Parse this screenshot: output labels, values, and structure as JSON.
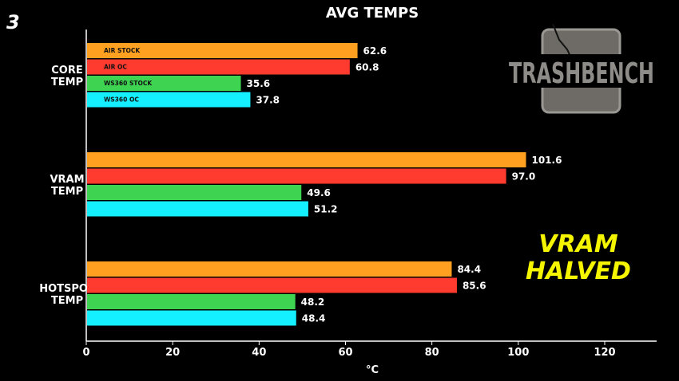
{
  "page_number": "3",
  "annotation": {
    "line1": "VRAM",
    "line2": "HALVED",
    "color": "#f5f500"
  },
  "logo": {
    "text": "TRASHBENCH"
  },
  "chart_data": {
    "type": "bar",
    "orientation": "horizontal",
    "title": "AVG TEMPS",
    "xlabel": "°C",
    "ylabel": "",
    "xlim": [
      0,
      132
    ],
    "xticks": [
      0,
      20,
      40,
      60,
      80,
      100,
      120
    ],
    "grid": false,
    "legend": "in-bar labels on first group",
    "categories": [
      [
        "CORE",
        "TEMP"
      ],
      [
        "VRAM",
        "TEMP"
      ],
      [
        "HOTSPOT",
        "TEMP"
      ]
    ],
    "series": [
      {
        "name": "AIR STOCK",
        "color": "#ffa020",
        "values": [
          62.6,
          101.6,
          84.4
        ]
      },
      {
        "name": "AIR OC",
        "color": "#ff3b30",
        "values": [
          60.8,
          97.0,
          85.6
        ]
      },
      {
        "name": "WS360 STOCK",
        "color": "#3ed452",
        "values": [
          35.6,
          49.6,
          48.2
        ]
      },
      {
        "name": "WS360 OC",
        "color": "#14f0ff",
        "values": [
          37.8,
          51.2,
          48.4
        ]
      }
    ]
  }
}
